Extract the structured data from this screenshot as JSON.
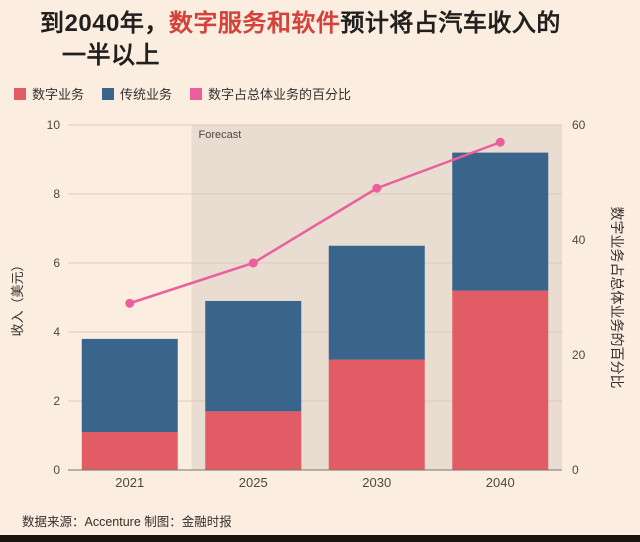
{
  "title": {
    "prefix": "到2040年，",
    "highlight": "数字服务和软件",
    "suffix": "预计将占汽车收入的",
    "line2": "一半以上"
  },
  "footer": {
    "text": "数据来源：Accenture 制图：金融时报"
  },
  "colors": {
    "background": "#fbeee0",
    "forecast_band": "#e9ddd1",
    "grid": "#d9cabb",
    "axis_line": "#7a7268",
    "text": "#33302e",
    "tick_text": "#4d4843",
    "title_text": "#21201e",
    "title_highlight": "#d6413b",
    "bottom_bar": "#181511"
  },
  "chart_data": {
    "type": "bar",
    "subtype": "stacked-bar-with-line",
    "categories": [
      "2021",
      "2025",
      "2030",
      "2040"
    ],
    "series": [
      {
        "name": "数字业务",
        "type": "bar",
        "axis": "left",
        "color": "#e25c66",
        "values": [
          1.1,
          1.7,
          3.2,
          5.2
        ]
      },
      {
        "name": "传统业务",
        "type": "bar",
        "axis": "left",
        "color": "#39658c",
        "values": [
          2.7,
          3.2,
          3.3,
          4.0
        ]
      },
      {
        "name": "数字占总体业务的百分比",
        "type": "line",
        "axis": "right",
        "color": "#ec5f9d",
        "values": [
          29,
          36,
          49,
          57
        ]
      }
    ],
    "left_axis": {
      "label": "收入（美元）",
      "min": 0,
      "max": 10,
      "ticks": [
        0,
        2,
        4,
        6,
        8,
        10
      ]
    },
    "right_axis": {
      "label": "数字业务占总体业务的百分比",
      "min": 0,
      "max": 60,
      "ticks": [
        0,
        20,
        40,
        60
      ]
    },
    "annotations": {
      "forecast_label": "Forecast",
      "forecast_start_category": "2025"
    },
    "grid": true,
    "legend_position": "top-left"
  }
}
